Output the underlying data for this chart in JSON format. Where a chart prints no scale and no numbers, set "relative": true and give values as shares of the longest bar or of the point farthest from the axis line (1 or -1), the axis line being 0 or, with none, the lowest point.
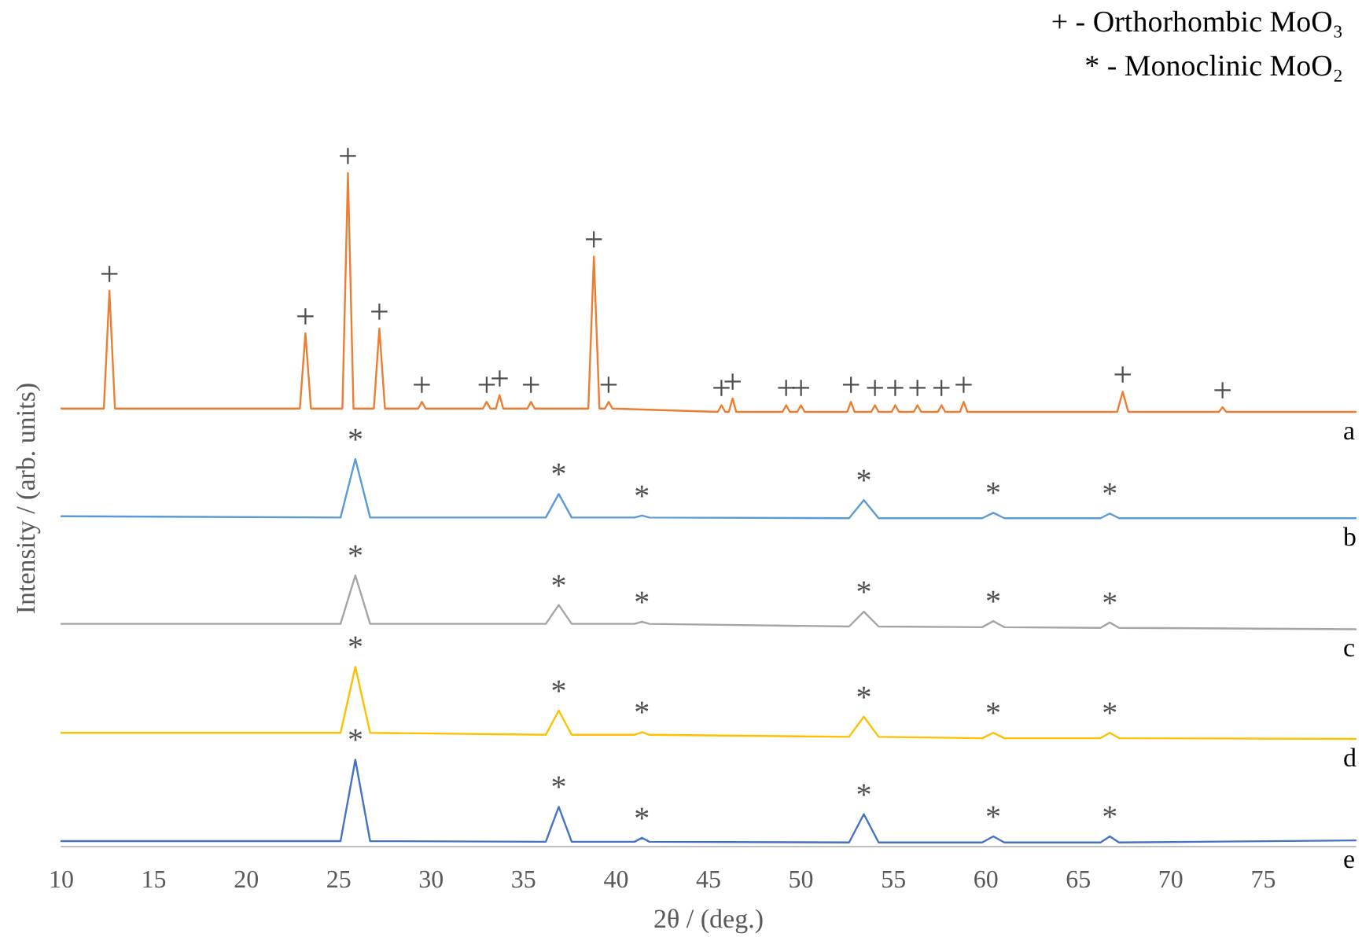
{
  "chart_data": {
    "type": "line",
    "relative": true,
    "xlabel": "2θ / (deg.)",
    "ylabel": "Intensity / (arb. units)",
    "xlim": [
      10,
      80
    ],
    "xticks": [
      10,
      15,
      20,
      25,
      30,
      35,
      40,
      45,
      50,
      55,
      60,
      65,
      70,
      75
    ],
    "grid": false,
    "legend": false,
    "marker": "none",
    "line_style": "solid",
    "series": [
      {
        "name": "a",
        "color": "#ed7d31",
        "x": [
          10,
          12.3,
          12.6,
          12.9,
          22.9,
          23.2,
          23.5,
          25.2,
          25.5,
          25.8,
          26.9,
          27.2,
          27.5,
          29.3,
          29.5,
          29.7,
          32.8,
          33.0,
          33.2,
          33.5,
          33.7,
          33.9,
          35.2,
          35.4,
          35.6,
          38.5,
          38.8,
          39.1,
          39.4,
          39.6,
          39.8,
          45.5,
          45.7,
          45.9,
          46.1,
          46.3,
          46.5,
          49.0,
          49.2,
          49.4,
          49.8,
          50.0,
          50.2,
          52.5,
          52.7,
          52.9,
          53.8,
          54.0,
          54.2,
          54.9,
          55.1,
          55.3,
          56.1,
          56.3,
          56.5,
          57.4,
          57.6,
          57.8,
          58.6,
          58.8,
          59.0,
          67.1,
          67.4,
          67.7,
          72.6,
          72.8,
          73.0,
          80
        ],
        "values": [
          0.65,
          0.65,
          0.825,
          0.65,
          0.65,
          0.762,
          0.65,
          0.65,
          1.0,
          0.65,
          0.65,
          0.769,
          0.65,
          0.65,
          0.66,
          0.65,
          0.65,
          0.66,
          0.65,
          0.65,
          0.67,
          0.65,
          0.65,
          0.66,
          0.65,
          0.65,
          0.876,
          0.65,
          0.65,
          0.66,
          0.65,
          0.645,
          0.655,
          0.645,
          0.645,
          0.665,
          0.645,
          0.645,
          0.655,
          0.645,
          0.645,
          0.655,
          0.645,
          0.645,
          0.66,
          0.645,
          0.645,
          0.655,
          0.645,
          0.645,
          0.655,
          0.645,
          0.645,
          0.655,
          0.645,
          0.645,
          0.655,
          0.645,
          0.645,
          0.66,
          0.645,
          0.645,
          0.675,
          0.645,
          0.645,
          0.652,
          0.645,
          0.645
        ]
      },
      {
        "name": "b",
        "color": "#5b9bd5",
        "x": [
          10,
          25.1,
          25.9,
          26.7,
          36.2,
          36.9,
          37.6,
          41.0,
          41.4,
          41.8,
          52.6,
          53.4,
          54.2,
          59.8,
          60.4,
          61.0,
          66.2,
          66.7,
          67.2,
          80
        ],
        "values": [
          0.49,
          0.488,
          0.575,
          0.488,
          0.488,
          0.523,
          0.488,
          0.488,
          0.491,
          0.488,
          0.487,
          0.514,
          0.487,
          0.487,
          0.495,
          0.487,
          0.487,
          0.494,
          0.487,
          0.487
        ]
      },
      {
        "name": "c",
        "color": "#a5a5a5",
        "x": [
          10,
          25.1,
          25.9,
          26.7,
          36.2,
          36.9,
          37.6,
          41.0,
          41.4,
          41.8,
          52.6,
          53.4,
          54.2,
          59.8,
          60.4,
          61.0,
          66.2,
          66.7,
          67.2,
          80
        ],
        "values": [
          0.33,
          0.33,
          0.402,
          0.33,
          0.33,
          0.358,
          0.33,
          0.33,
          0.333,
          0.33,
          0.326,
          0.348,
          0.326,
          0.325,
          0.334,
          0.325,
          0.324,
          0.332,
          0.324,
          0.322
        ]
      },
      {
        "name": "d",
        "color": "#ffc000",
        "x": [
          10,
          25.1,
          25.9,
          26.7,
          36.2,
          36.9,
          37.6,
          41.0,
          41.4,
          41.8,
          52.6,
          53.4,
          54.2,
          59.8,
          60.4,
          61.0,
          66.2,
          66.7,
          67.2,
          80
        ],
        "values": [
          0.168,
          0.168,
          0.266,
          0.168,
          0.165,
          0.201,
          0.165,
          0.165,
          0.169,
          0.165,
          0.162,
          0.192,
          0.162,
          0.16,
          0.168,
          0.16,
          0.16,
          0.168,
          0.16,
          0.159
        ]
      },
      {
        "name": "e",
        "color": "#4472c4",
        "x": [
          10,
          25.1,
          25.9,
          26.7,
          36.2,
          36.9,
          37.6,
          41.0,
          41.4,
          41.8,
          52.6,
          53.4,
          54.2,
          59.8,
          60.4,
          61.0,
          66.2,
          66.7,
          67.2,
          80
        ],
        "values": [
          0.007,
          0.007,
          0.128,
          0.007,
          0.006,
          0.058,
          0.006,
          0.006,
          0.012,
          0.006,
          0.005,
          0.047,
          0.005,
          0.005,
          0.014,
          0.005,
          0.005,
          0.014,
          0.005,
          0.008
        ]
      }
    ],
    "annotations": [
      "+ - Orthorhombic MoO₃",
      "* - Monoclinic MoO₂",
      {
        "text": "+",
        "x": 12.6,
        "y": 0.825
      },
      {
        "text": "+",
        "x": 23.2,
        "y": 0.762
      },
      {
        "text": "+",
        "x": 25.5,
        "y": 1.0
      },
      {
        "text": "+",
        "x": 27.2,
        "y": 0.769
      },
      {
        "text": "+",
        "x": 29.5,
        "y": 0.66
      },
      {
        "text": "+",
        "x": 33.0,
        "y": 0.66
      },
      {
        "text": "+",
        "x": 33.7,
        "y": 0.67
      },
      {
        "text": "+",
        "x": 35.4,
        "y": 0.66
      },
      {
        "text": "+",
        "x": 38.8,
        "y": 0.876
      },
      {
        "text": "+",
        "x": 39.6,
        "y": 0.66
      },
      {
        "text": "+",
        "x": 45.7,
        "y": 0.655
      },
      {
        "text": "+",
        "x": 46.3,
        "y": 0.665
      },
      {
        "text": "+",
        "x": 49.2,
        "y": 0.655
      },
      {
        "text": "+",
        "x": 50.0,
        "y": 0.655
      },
      {
        "text": "+",
        "x": 52.7,
        "y": 0.66
      },
      {
        "text": "+",
        "x": 54.0,
        "y": 0.655
      },
      {
        "text": "+",
        "x": 55.1,
        "y": 0.655
      },
      {
        "text": "+",
        "x": 56.3,
        "y": 0.655
      },
      {
        "text": "+",
        "x": 57.6,
        "y": 0.655
      },
      {
        "text": "+",
        "x": 58.8,
        "y": 0.66
      },
      {
        "text": "+",
        "x": 67.4,
        "y": 0.675
      },
      {
        "text": "+",
        "x": 72.8,
        "y": 0.652
      },
      {
        "text": "*",
        "x": 25.9,
        "y": 0.575
      },
      {
        "text": "*",
        "x": 36.9,
        "y": 0.523
      },
      {
        "text": "*",
        "x": 41.4,
        "y": 0.491
      },
      {
        "text": "*",
        "x": 53.4,
        "y": 0.514
      },
      {
        "text": "*",
        "x": 60.4,
        "y": 0.495
      },
      {
        "text": "*",
        "x": 66.7,
        "y": 0.494
      },
      {
        "text": "*",
        "x": 25.9,
        "y": 0.402
      },
      {
        "text": "*",
        "x": 36.9,
        "y": 0.358
      },
      {
        "text": "*",
        "x": 41.4,
        "y": 0.333
      },
      {
        "text": "*",
        "x": 53.4,
        "y": 0.348
      },
      {
        "text": "*",
        "x": 60.4,
        "y": 0.334
      },
      {
        "text": "*",
        "x": 66.7,
        "y": 0.332
      },
      {
        "text": "*",
        "x": 25.9,
        "y": 0.266
      },
      {
        "text": "*",
        "x": 36.9,
        "y": 0.201
      },
      {
        "text": "*",
        "x": 41.4,
        "y": 0.169
      },
      {
        "text": "*",
        "x": 53.4,
        "y": 0.192
      },
      {
        "text": "*",
        "x": 60.4,
        "y": 0.168
      },
      {
        "text": "*",
        "x": 66.7,
        "y": 0.168
      },
      {
        "text": "*",
        "x": 25.9,
        "y": 0.128
      },
      {
        "text": "*",
        "x": 36.9,
        "y": 0.058
      },
      {
        "text": "*",
        "x": 41.4,
        "y": 0.012
      },
      {
        "text": "*",
        "x": 53.4,
        "y": 0.047
      },
      {
        "text": "*",
        "x": 60.4,
        "y": 0.014
      },
      {
        "text": "*",
        "x": 66.7,
        "y": 0.014
      }
    ]
  }
}
